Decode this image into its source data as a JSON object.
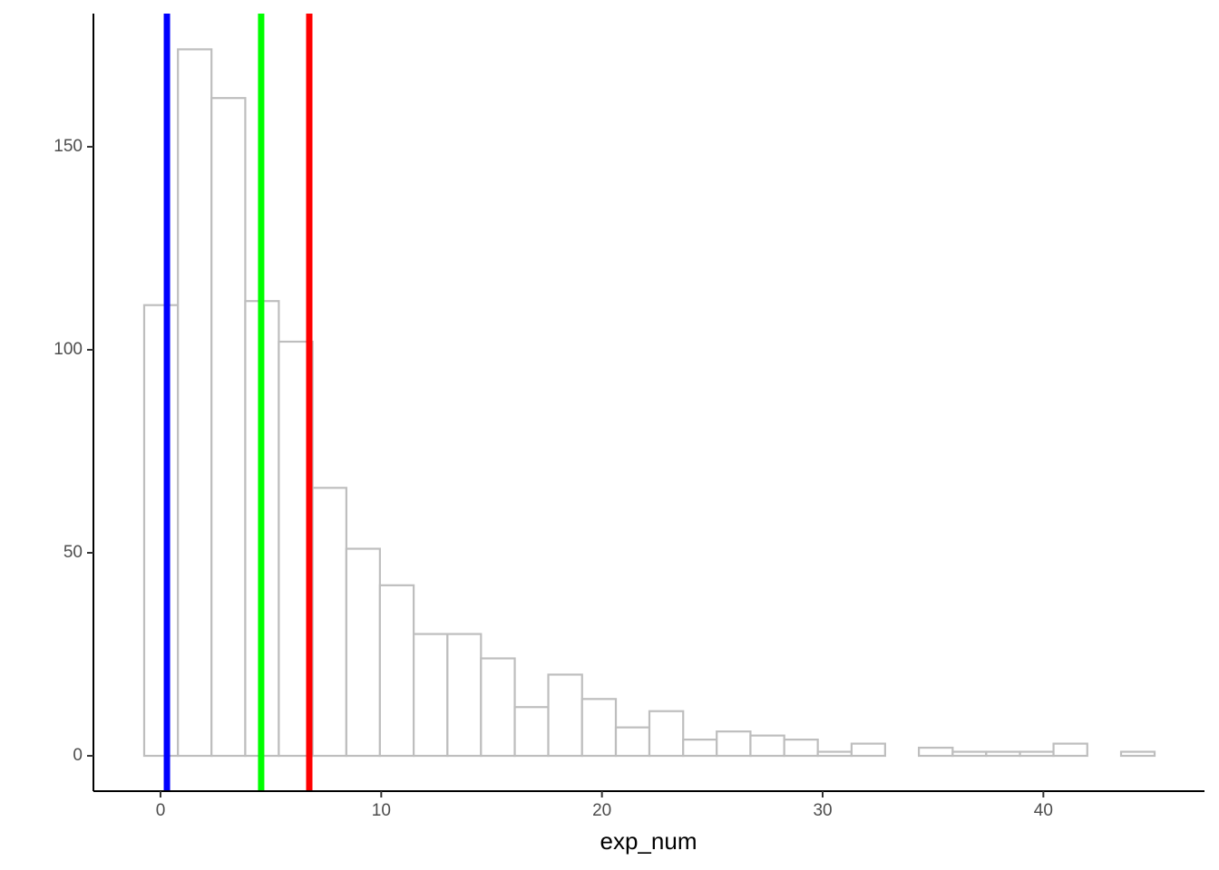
{
  "chart_data": {
    "type": "histogram",
    "x_label": "exp_num",
    "bins": [
      -0.74,
      0.79,
      2.31,
      3.84,
      5.36,
      6.89,
      8.42,
      9.94,
      11.47,
      13.0,
      14.52,
      16.05,
      17.57,
      19.1,
      20.63,
      22.15,
      23.68,
      25.2,
      26.73,
      28.26,
      29.78,
      31.31,
      32.83,
      34.36,
      35.89,
      37.41,
      38.94,
      40.46,
      41.99,
      43.52,
      45.04
    ],
    "values": [
      111,
      174,
      162,
      112,
      102,
      66,
      51,
      42,
      30,
      30,
      24,
      12,
      20,
      14,
      7,
      11,
      4,
      6,
      5,
      4,
      1,
      3,
      0,
      2,
      1,
      1,
      1,
      3,
      0,
      1
    ],
    "color": "#bebebe",
    "vlines": [
      {
        "x": 0.29,
        "color": "#0000ff"
      },
      {
        "x": 4.56,
        "color": "#00ff00"
      },
      {
        "x": 6.74,
        "color": "#ff0000"
      }
    ],
    "xlim": [
      -3.04,
      47.3
    ],
    "ylim": [
      -8.7,
      182.8
    ],
    "xticks": [
      0,
      10,
      20,
      30,
      40
    ],
    "yticks": [
      0,
      50,
      100,
      150
    ]
  }
}
